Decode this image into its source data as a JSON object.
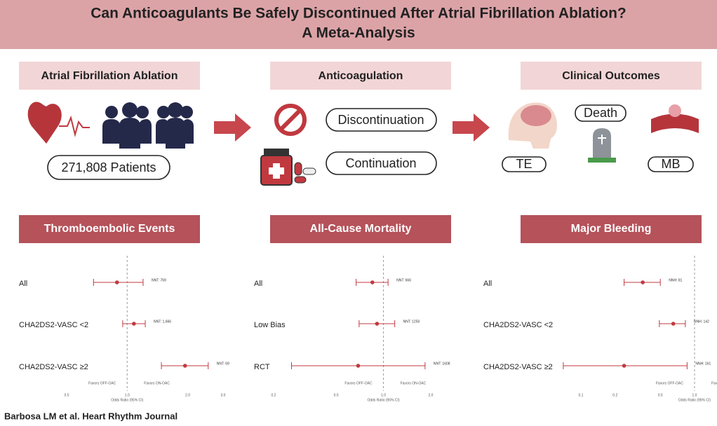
{
  "title": [
    "Can Anticoagulants Be Safely Discontinued After Atrial Fibrillation Ablation?",
    "A Meta-Analysis"
  ],
  "flow": {
    "ablation": {
      "heading": "Atrial Fibrillation Ablation",
      "patients": "271,808 Patients"
    },
    "anticoagulation": {
      "heading": "Anticoagulation",
      "options": [
        "Discontinuation",
        "Continuation"
      ]
    },
    "outcomes": {
      "heading": "Clinical Outcomes",
      "items": [
        "Death",
        "TE",
        "MB"
      ]
    }
  },
  "chart_data": [
    {
      "type": "forest",
      "title": "Thromboembolic Events",
      "categories": [
        "All",
        "CHA2DS2-VASC <2",
        "CHA2DS2-VASC ≥2"
      ],
      "values": [
        0.89,
        1.08,
        1.94
      ],
      "lower": [
        0.68,
        0.95,
        1.48
      ],
      "upper": [
        1.2,
        1.23,
        2.53
      ],
      "annotations": [
        "NNT: 769",
        "NNT: 1,666",
        "NNT: 69"
      ],
      "favors": [
        "Favors OFF-OAC",
        "Favors ON-OAC"
      ],
      "xlabel": "Odds Ratio (95% CI)",
      "log_x": true,
      "xlim": [
        0.5,
        3
      ],
      "xticks": [
        0.5,
        {
          "value": 1,
          "label": "1.0"
        },
        {
          "value": 2,
          "label": "2.0"
        },
        {
          "value": 3,
          "label": "3.0"
        }
      ],
      "reference_line": 1,
      "color": "#c0393f"
    },
    {
      "type": "forest",
      "title": "All-Cause Mortality",
      "categories": [
        "All",
        "Low Bias",
        "RCT"
      ],
      "values": [
        0.85,
        0.91,
        0.69
      ],
      "lower": [
        0.67,
        0.7,
        0.26
      ],
      "upper": [
        1.07,
        1.18,
        1.84
      ],
      "annotations": [
        "NNT: 666",
        "NNT: 1250",
        "NNT: 1608"
      ],
      "favors": [
        "Favors OFF-OAC",
        "Favors ON-OAC"
      ],
      "xlabel": "Odds Ratio (95% CI)",
      "log_x": true,
      "xlim": [
        0.2,
        2
      ],
      "xticks": [
        0.2,
        0.5,
        {
          "value": 1,
          "label": "1.0"
        },
        {
          "value": 2,
          "label": "2.0"
        }
      ],
      "reference_line": 1,
      "color": "#c0393f"
    },
    {
      "type": "forest",
      "title": "Major Bleeding",
      "categories": [
        "All",
        "CHA2DS2-VASC <2",
        "CHA2DS2-VASC ≥2"
      ],
      "values": [
        0.35,
        0.65,
        0.24
      ],
      "lower": [
        0.24,
        0.49,
        0.07
      ],
      "upper": [
        0.5,
        0.83,
        0.86
      ],
      "annotations": [
        "NNH: 81",
        "NNH: 142",
        "NNH: 161"
      ],
      "favors": [
        "Favors OFF-OAC",
        "Favors ON-OAC"
      ],
      "xlabel": "Odds Ratio (95% CI)",
      "log_x": true,
      "xlim": [
        0.1,
        1
      ],
      "xticks": [
        0.1,
        0.2,
        0.5,
        {
          "value": 1,
          "label": "1.0"
        }
      ],
      "reference_line": 1,
      "color": "#c0393f"
    }
  ],
  "citation": "Barbosa LM et al. Heart Rhythm Journal"
}
